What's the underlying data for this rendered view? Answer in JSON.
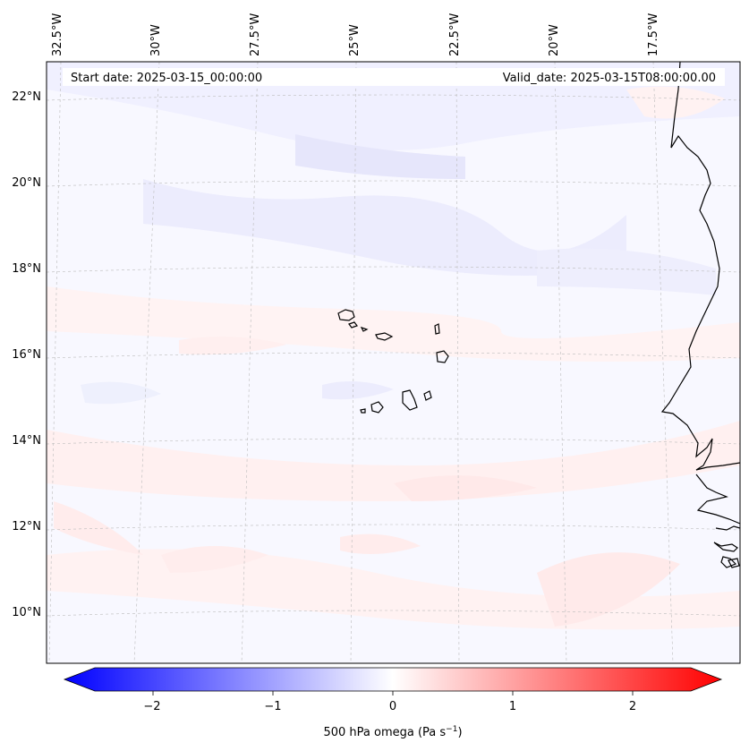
{
  "map": {
    "start_date": "Start date: 2025-03-15_00:00:00",
    "valid_date": "Valid_date: 2025-03-15T08:00:00.00",
    "lon_labels": [
      "32.5°W",
      "30°W",
      "27.5°W",
      "25°W",
      "22.5°W",
      "20°W",
      "17.5°W"
    ],
    "lat_labels": [
      "22°N",
      "20°N",
      "18°N",
      "16°N",
      "14°N",
      "12°N",
      "10°N"
    ]
  },
  "colorbar": {
    "label": "500 hPa omega (Pa s",
    "label_superscript": "−1",
    "label_close": ")",
    "ticks": [
      "−2",
      "−1",
      "0",
      "1",
      "2"
    ],
    "tick_values": [
      -2,
      -1,
      0,
      1,
      2
    ],
    "range": [
      -2.5,
      2.5
    ],
    "colormap": "bwr",
    "colors": {
      "low": "#0000ff",
      "mid": "#ffffff",
      "high": "#ff0000"
    }
  }
}
